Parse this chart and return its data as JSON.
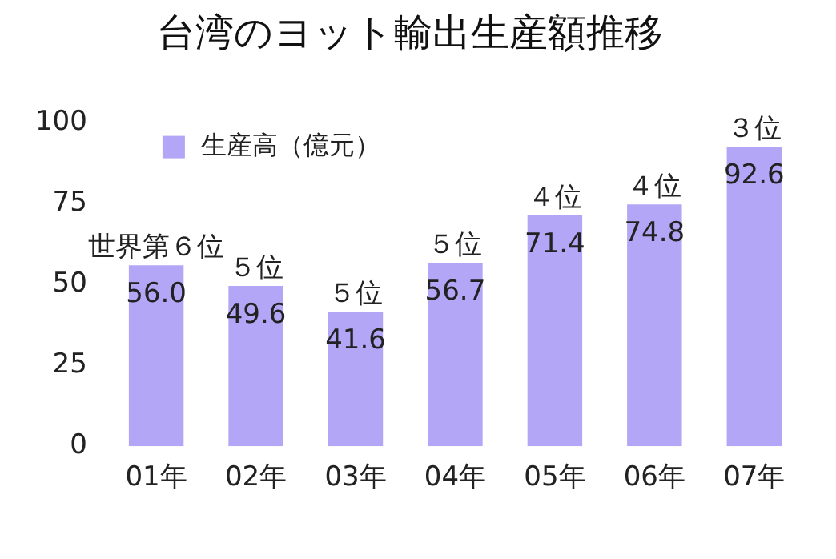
{
  "chart_data": {
    "type": "bar",
    "title": "台湾のヨット輸出生産額推移",
    "categories": [
      "01年",
      "02年",
      "03年",
      "04年",
      "05年",
      "06年",
      "07年"
    ],
    "series": [
      {
        "name": "生産高（億元）",
        "color": "#b4a6f6",
        "values": [
          56.0,
          49.6,
          41.6,
          56.7,
          71.4,
          74.8,
          92.6
        ],
        "value_labels": [
          "56.0",
          "49.6",
          "41.6",
          "56.7",
          "71.4",
          "74.8",
          "92.6"
        ]
      }
    ],
    "ylim": [
      0,
      100
    ],
    "yticks": [
      0,
      25,
      50,
      75,
      100
    ],
    "grid": false,
    "legend": "top left",
    "annotations": [
      {
        "text": "世界第６位",
        "x": "01年",
        "y": 56.0
      },
      {
        "text": "５位",
        "x": "02年",
        "y": 49.6
      },
      {
        "text": "５位",
        "x": "03年",
        "y": 41.6
      },
      {
        "text": "５位",
        "x": "04年",
        "y": 56.7
      },
      {
        "text": "４位",
        "x": "05年",
        "y": 71.4
      },
      {
        "text": "４位",
        "x": "06年",
        "y": 74.8
      },
      {
        "text": "３位",
        "x": "07年",
        "y": 92.6
      }
    ]
  }
}
